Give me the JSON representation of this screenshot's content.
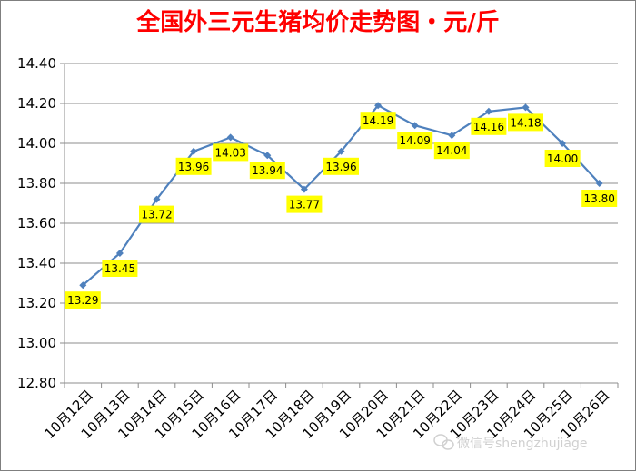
{
  "chart_data": {
    "type": "line",
    "title": "全国外三元生猪均价走势图・元/斤",
    "categories": [
      "10月12日",
      "10月13日",
      "10月14日",
      "10月15日",
      "10月16日",
      "10月17日",
      "10月18日",
      "10月19日",
      "10月20日",
      "10月21日",
      "10月22日",
      "10月23日",
      "10月24日",
      "10月25日",
      "10月26日"
    ],
    "values": [
      13.29,
      13.45,
      13.72,
      13.96,
      14.03,
      13.94,
      13.77,
      13.96,
      14.19,
      14.09,
      14.04,
      14.16,
      14.18,
      14.0,
      13.8
    ],
    "value_labels": [
      "13.29",
      "13.45",
      "13.72",
      "13.96",
      "14.03",
      "13.94",
      "13.77",
      "13.96",
      "14.19",
      "14.09",
      "14.04",
      "14.16",
      "14.18",
      "14.00",
      "13.80"
    ],
    "ylim": [
      12.8,
      14.4
    ],
    "yticks": [
      "12.80",
      "13.00",
      "13.20",
      "13.40",
      "13.60",
      "13.80",
      "14.00",
      "14.20",
      "14.40"
    ],
    "grid": true,
    "legend": "none",
    "line_color": "#4f81bd",
    "label_bg_color": "#ffff00",
    "title_color": "#ff0000"
  },
  "watermark": {
    "text": "微信号shengzhujiage",
    "icon": "wechat-icon"
  }
}
